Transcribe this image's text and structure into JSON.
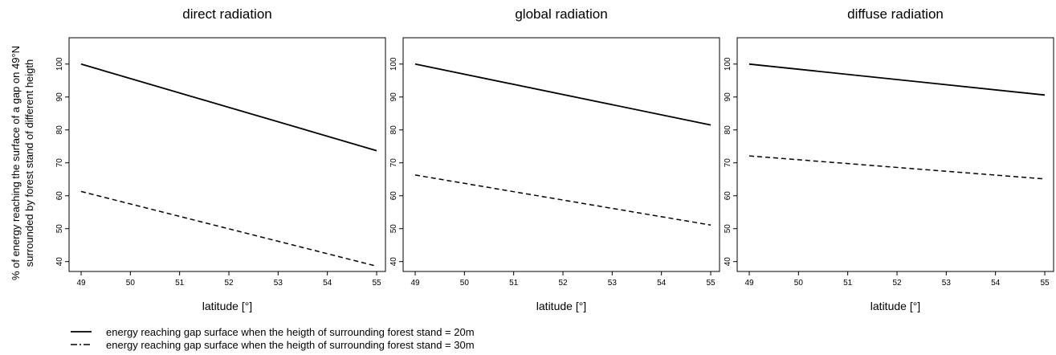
{
  "figure": {
    "ylabel_lines": [
      "% of energy reaching the surface of a gap on 49°N",
      "surrounded by forest stand of different heigth"
    ]
  },
  "legend": {
    "placement": "bottom-left",
    "entries": [
      {
        "label": "energy reaching gap surface when the heigth of surrounding forest stand = 20m",
        "line_style": "solid"
      },
      {
        "label": "energy reaching gap surface when the heigth of surrounding forest stand = 30m",
        "line_style": "dashed"
      }
    ]
  },
  "chart_data": [
    {
      "type": "line",
      "title": "direct radiation",
      "xlabel": "latitude [°]",
      "xlim": [
        49,
        55
      ],
      "ylim": [
        37,
        108
      ],
      "xticks": [
        49,
        50,
        51,
        52,
        53,
        54,
        55
      ],
      "yticks": [
        40,
        50,
        60,
        70,
        80,
        90,
        100
      ],
      "grid": false,
      "series": [
        {
          "name": "energy reaching gap surface when the heigth of surrounding forest stand = 20m",
          "line_style": "solid",
          "x": [
            49,
            55
          ],
          "y": [
            100,
            73.7
          ]
        },
        {
          "name": "energy reaching gap surface when the heigth of surrounding forest stand = 30m",
          "line_style": "dashed",
          "x": [
            49,
            55
          ],
          "y": [
            61.3,
            38.6
          ]
        }
      ]
    },
    {
      "type": "line",
      "title": "global radiation",
      "xlabel": "latitude [°]",
      "xlim": [
        49,
        55
      ],
      "ylim": [
        37,
        108
      ],
      "xticks": [
        49,
        50,
        51,
        52,
        53,
        54,
        55
      ],
      "yticks": [
        40,
        50,
        60,
        70,
        80,
        90,
        100
      ],
      "grid": false,
      "series": [
        {
          "name": "energy reaching gap surface when the heigth of surrounding forest stand = 20m",
          "line_style": "solid",
          "x": [
            49,
            55
          ],
          "y": [
            100,
            81.5
          ]
        },
        {
          "name": "energy reaching gap surface when the heigth of surrounding forest stand = 30m",
          "line_style": "dashed",
          "x": [
            49,
            55
          ],
          "y": [
            66.3,
            51.1
          ]
        }
      ]
    },
    {
      "type": "line",
      "title": "diffuse radiation",
      "xlabel": "latitude [°]",
      "xlim": [
        49,
        55
      ],
      "ylim": [
        37,
        108
      ],
      "xticks": [
        49,
        50,
        51,
        52,
        53,
        54,
        55
      ],
      "yticks": [
        40,
        50,
        60,
        70,
        80,
        90,
        100
      ],
      "grid": false,
      "series": [
        {
          "name": "energy reaching gap surface when the heigth of surrounding forest stand = 20m",
          "line_style": "solid",
          "x": [
            49,
            55
          ],
          "y": [
            100,
            90.6
          ]
        },
        {
          "name": "energy reaching gap surface when the heigth of surrounding forest stand = 30m",
          "line_style": "dashed",
          "x": [
            49,
            55
          ],
          "y": [
            72.1,
            65.1
          ]
        }
      ]
    }
  ]
}
